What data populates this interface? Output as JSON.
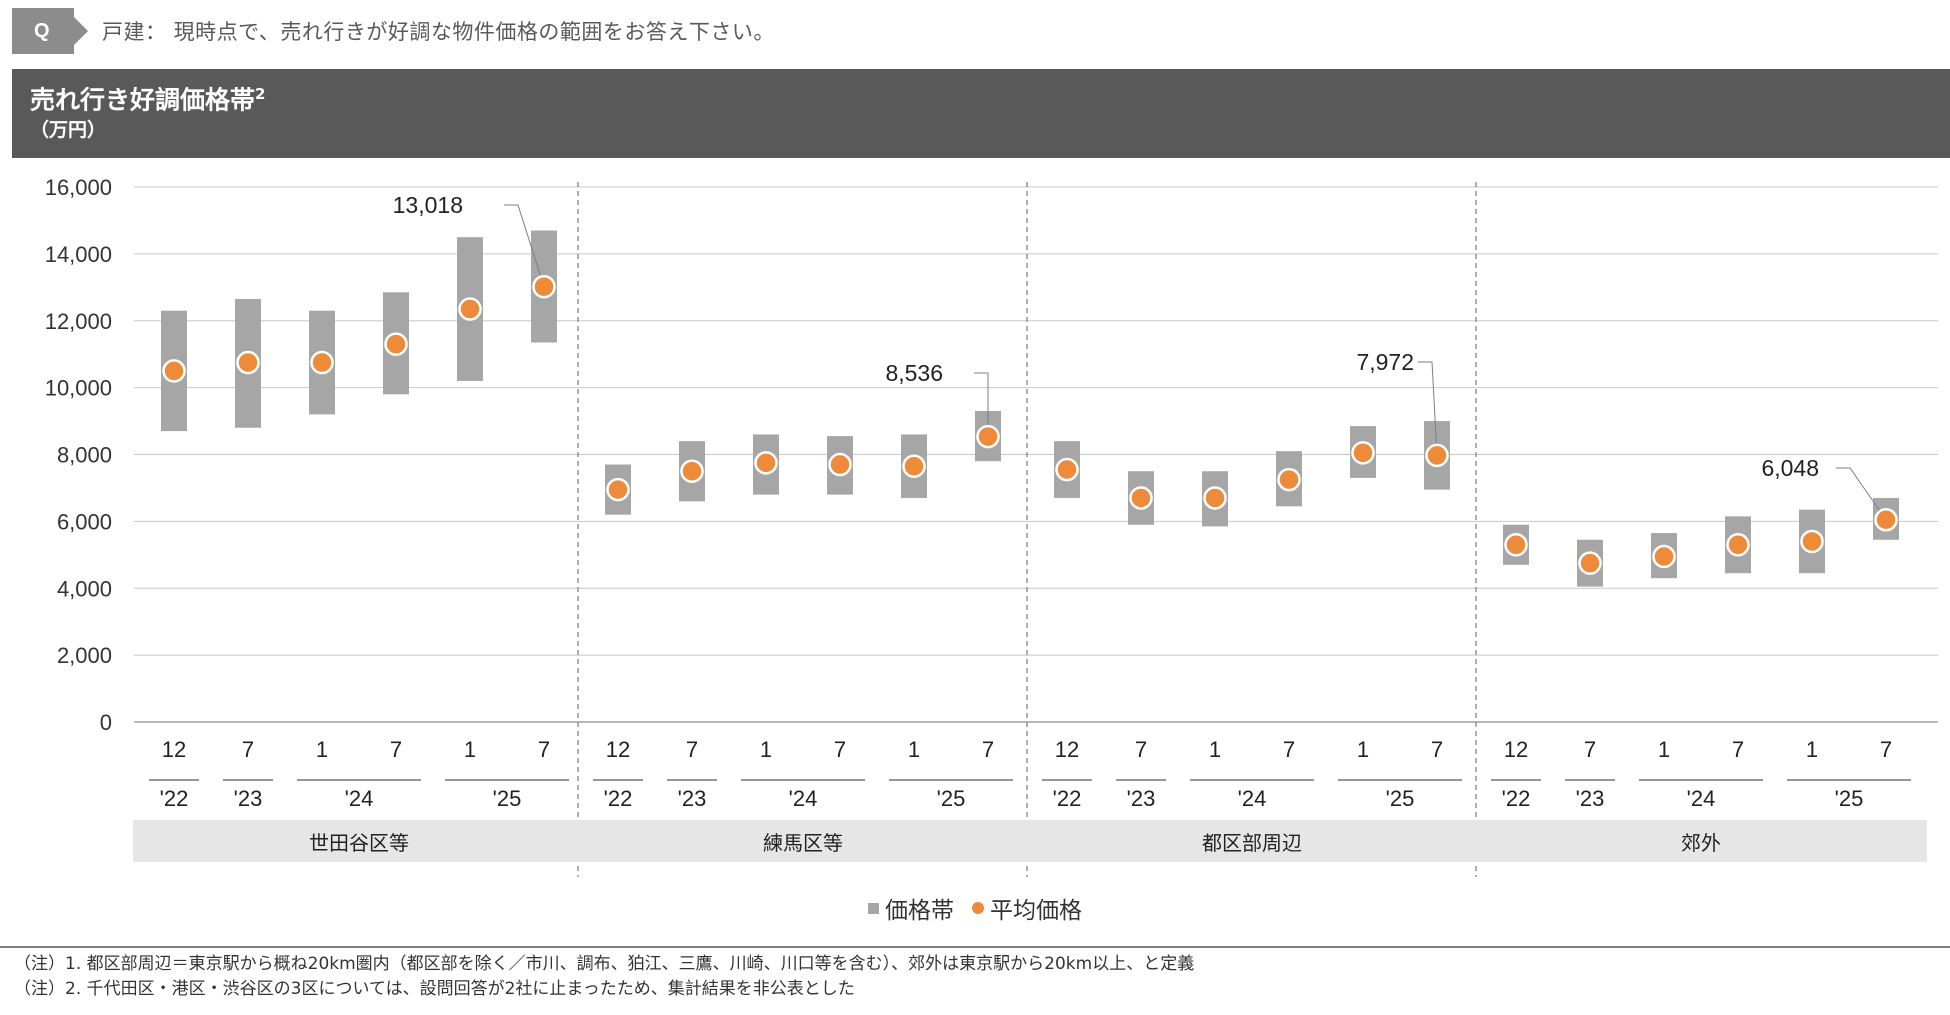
{
  "question": {
    "badge": "Q",
    "text": "戸建： 現時点で、売れ行きが好調な物件価格の範囲をお答え下さい。"
  },
  "header": {
    "title": "売れ行き好調価格帯",
    "title_sup": "2",
    "unit": "（万円）"
  },
  "legend": {
    "band_label": "価格帯",
    "avg_label": "平均価格"
  },
  "notes": [
    "（注）1.  都区部周辺＝東京駅から概ね20km圏内（都区部を除く／市川、調布、狛江、三鷹、川崎、川口等を含む）、郊外は東京駅から20km以上、と定義",
    "（注）2.  千代田区・港区・渋谷区の3区については、設問回答が2社に止まったため、集計結果を非公表とした"
  ],
  "colors": {
    "band": "#a6a6a6",
    "avg": "#ed8b3a",
    "header_bg": "#595959",
    "group_label_bg": "#e6e6e6"
  },
  "chart_data": {
    "type": "range-dot",
    "ylim": [
      0,
      16000
    ],
    "yticks": [
      0,
      2000,
      4000,
      6000,
      8000,
      10000,
      12000,
      14000,
      16000
    ],
    "ytick_labels": [
      "0",
      "2,000",
      "4,000",
      "6,000",
      "8,000",
      "10,000",
      "12,000",
      "14,000",
      "16,000"
    ],
    "grid": true,
    "legend_position": "bottom-center",
    "series": [
      {
        "name": "価格帯",
        "kind": "range"
      },
      {
        "name": "平均価格",
        "kind": "point"
      }
    ],
    "periods": [
      {
        "month": "12",
        "year": "'22"
      },
      {
        "month": "7",
        "year": "'23"
      },
      {
        "month": "1",
        "year": "'24"
      },
      {
        "month": "7",
        "year": "'24"
      },
      {
        "month": "1",
        "year": "'25"
      },
      {
        "month": "7",
        "year": "'25"
      }
    ],
    "year_groups": [
      {
        "label": "'22",
        "span": 1
      },
      {
        "label": "'23",
        "span": 1
      },
      {
        "label": "'24",
        "span": 2
      },
      {
        "label": "'25",
        "span": 2
      }
    ],
    "groups": [
      {
        "name": "世田谷区等",
        "low": [
          8700,
          8800,
          9200,
          9800,
          10200,
          11350
        ],
        "high": [
          12300,
          12650,
          12300,
          12850,
          14500,
          14700
        ],
        "avg": [
          10500,
          10750,
          10750,
          11300,
          12350,
          13018
        ],
        "callout": "13,018"
      },
      {
        "name": "練馬区等",
        "low": [
          6200,
          6600,
          6800,
          6800,
          6700,
          7800
        ],
        "high": [
          7700,
          8400,
          8600,
          8550,
          8600,
          9300
        ],
        "avg": [
          6950,
          7500,
          7750,
          7700,
          7650,
          8536
        ],
        "callout": "8,536"
      },
      {
        "name": "都区部周辺",
        "low": [
          6700,
          5900,
          5850,
          6450,
          7300,
          6950
        ],
        "high": [
          8400,
          7500,
          7500,
          8100,
          8850,
          9000
        ],
        "avg": [
          7550,
          6700,
          6700,
          7250,
          8050,
          7972
        ],
        "callout": "7,972"
      },
      {
        "name": "郊外",
        "low": [
          4700,
          4050,
          4300,
          4450,
          4450,
          5450
        ],
        "high": [
          5900,
          5450,
          5650,
          6150,
          6350,
          6700
        ],
        "avg": [
          5300,
          4750,
          4950,
          5300,
          5400,
          6048
        ],
        "callout": "6,048"
      }
    ]
  }
}
